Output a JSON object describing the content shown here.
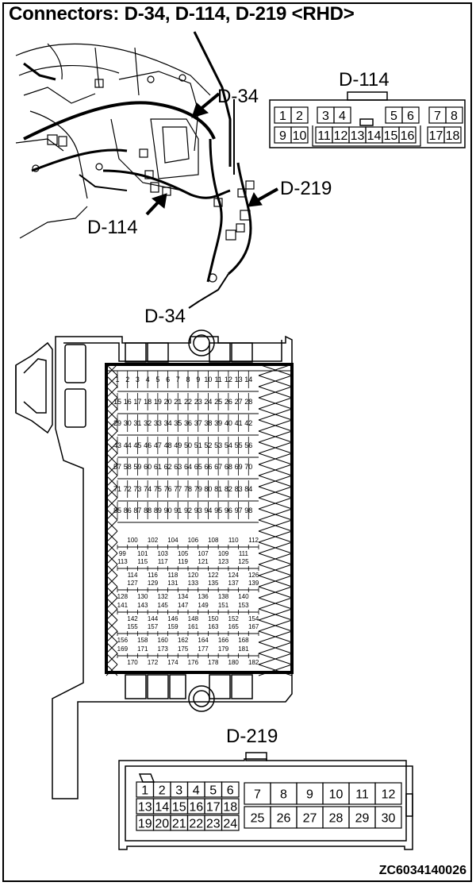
{
  "title": "Connectors: D-34, D-114, D-219 <RHD>",
  "figure_code": "ZC6034140026",
  "callouts": {
    "d34": "D-34",
    "d219": "D-219",
    "d114": "D-114"
  },
  "d114": {
    "label": "D-114",
    "top_row": [
      "1",
      "2",
      "3",
      "4",
      "5",
      "6",
      "7",
      "8"
    ],
    "bottom_row": [
      "9",
      "10",
      "11",
      "12",
      "13",
      "14",
      "15",
      "16",
      "17",
      "18"
    ]
  },
  "d34": {
    "label": "D-34",
    "grid_rows": [
      [
        "1",
        "2",
        "3",
        "4",
        "5",
        "6",
        "7",
        "8",
        "9",
        "10",
        "11",
        "12",
        "13",
        "14"
      ],
      [
        "15",
        "16",
        "17",
        "18",
        "19",
        "20",
        "21",
        "22",
        "23",
        "24",
        "25",
        "26",
        "27",
        "28"
      ],
      [
        "29",
        "30",
        "31",
        "32",
        "33",
        "34",
        "35",
        "36",
        "37",
        "38",
        "39",
        "40",
        "41",
        "42"
      ],
      [
        "43",
        "44",
        "45",
        "46",
        "47",
        "48",
        "49",
        "50",
        "51",
        "52",
        "53",
        "54",
        "55",
        "56"
      ],
      [
        "57",
        "58",
        "59",
        "60",
        "61",
        "62",
        "63",
        "64",
        "65",
        "66",
        "67",
        "68",
        "69",
        "70"
      ],
      [
        "71",
        "72",
        "73",
        "74",
        "75",
        "76",
        "77",
        "78",
        "79",
        "80",
        "81",
        "82",
        "83",
        "84"
      ],
      [
        "85",
        "86",
        "87",
        "88",
        "89",
        "90",
        "91",
        "92",
        "93",
        "94",
        "95",
        "96",
        "97",
        "98"
      ]
    ],
    "stagger_rows": [
      {
        "top": [
          "100",
          "102",
          "104",
          "106",
          "108",
          "110",
          "112"
        ],
        "bottom": [
          "99",
          "101",
          "103",
          "105",
          "107",
          "109",
          "111"
        ]
      },
      {
        "top": [
          "113",
          "115",
          "117",
          "119",
          "121",
          "123",
          "125"
        ],
        "bottom": [
          "114",
          "116",
          "118",
          "120",
          "122",
          "124",
          "126"
        ]
      },
      {
        "top": [
          "127",
          "129",
          "131",
          "133",
          "135",
          "137",
          "139"
        ],
        "bottom": [
          "128",
          "130",
          "132",
          "134",
          "136",
          "138",
          "140"
        ]
      },
      {
        "top": [
          "141",
          "143",
          "145",
          "147",
          "149",
          "151",
          "153"
        ],
        "bottom": [
          "142",
          "144",
          "146",
          "148",
          "150",
          "152",
          "154"
        ]
      },
      {
        "top": [
          "155",
          "157",
          "159",
          "161",
          "163",
          "165",
          "167"
        ],
        "bottom": [
          "156",
          "158",
          "160",
          "162",
          "164",
          "166",
          "168"
        ]
      },
      {
        "top": [
          "169",
          "171",
          "173",
          "175",
          "177",
          "179",
          "181"
        ],
        "bottom": [
          "170",
          "172",
          "174",
          "176",
          "178",
          "180",
          "182"
        ]
      }
    ]
  },
  "d219": {
    "label": "D-219",
    "small_rows": [
      [
        "1",
        "2",
        "3",
        "4",
        "5",
        "6"
      ],
      [
        "13",
        "14",
        "15",
        "16",
        "17",
        "18"
      ],
      [
        "19",
        "20",
        "21",
        "22",
        "23",
        "24"
      ]
    ],
    "large_rows": [
      [
        "7",
        "8",
        "9",
        "10",
        "11",
        "12"
      ],
      [
        "25",
        "26",
        "27",
        "28",
        "29",
        "30"
      ]
    ]
  }
}
